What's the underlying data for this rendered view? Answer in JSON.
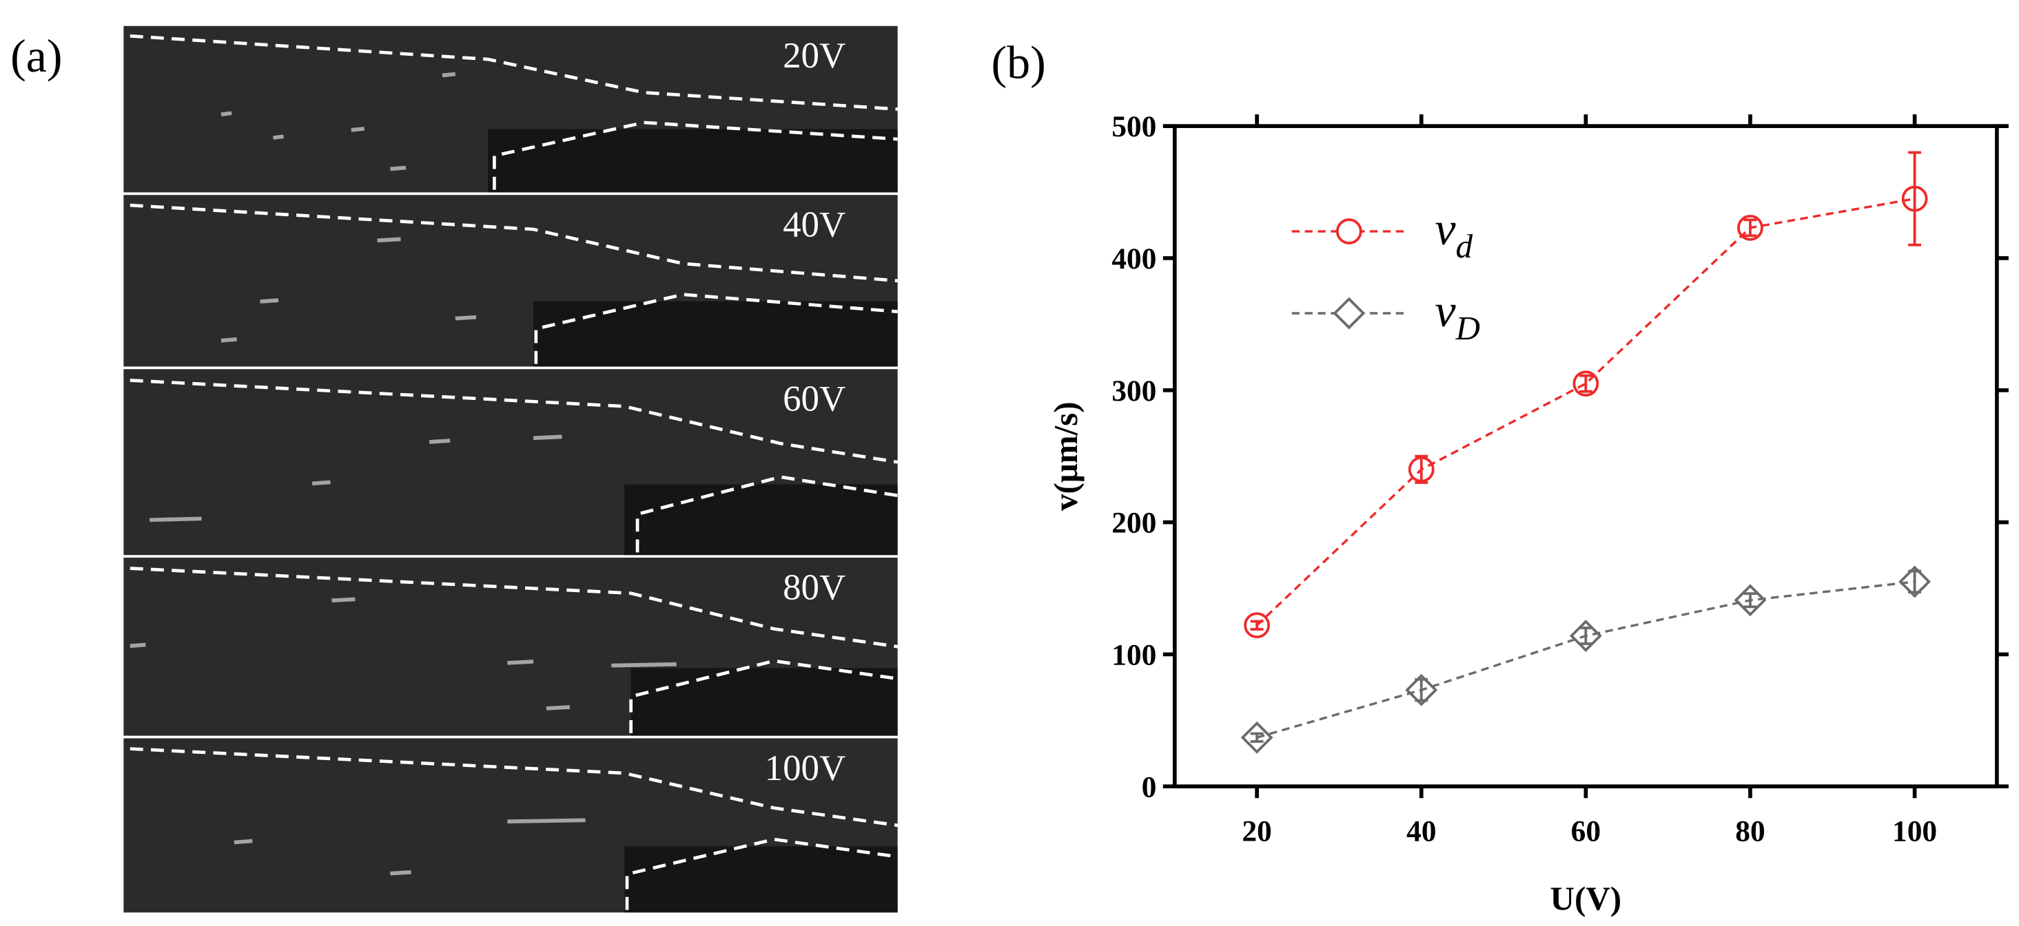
{
  "panel_labels": [
    "(a)",
    "(b)"
  ],
  "images": [
    "20V",
    "40V",
    "60V",
    "80V",
    "100V"
  ],
  "chart_data": {
    "type": "line",
    "x_label": "U(V)",
    "y_label": "v(μm/s)",
    "x": [
      20,
      40,
      60,
      80,
      100
    ],
    "xlim": [
      10,
      110
    ],
    "xticks": [
      20,
      40,
      60,
      80,
      100
    ],
    "ylim": [
      0,
      500
    ],
    "yticks": [
      0,
      100,
      200,
      300,
      400,
      500
    ],
    "series": [
      {
        "name": "v",
        "subscript": "d",
        "color": "#ee2a2a",
        "marker": "circle",
        "values": [
          122,
          240,
          305,
          423,
          445
        ],
        "errors": [
          3,
          10,
          6,
          6,
          35
        ]
      },
      {
        "name": "v",
        "subscript": "D",
        "color": "#6b6b6b",
        "marker": "diamond",
        "values": [
          37,
          73,
          114,
          141,
          155
        ],
        "errors": [
          3,
          8,
          6,
          5,
          8
        ]
      }
    ]
  }
}
